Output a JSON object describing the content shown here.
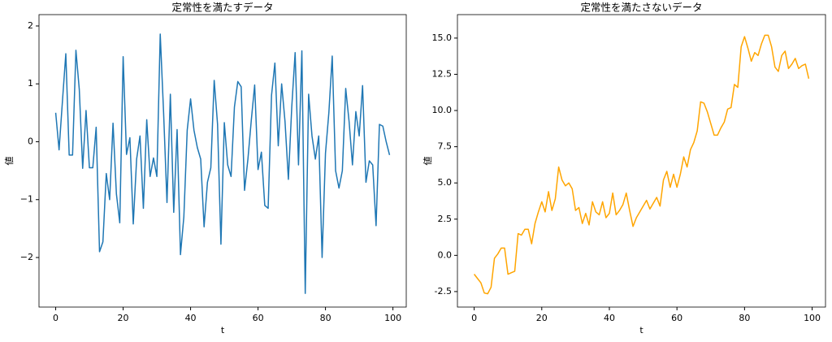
{
  "chart_data": [
    {
      "type": "line",
      "title": "定常性を満たすデータ",
      "xlabel": "t",
      "ylabel": "値",
      "color": "#1f77b4",
      "x": [
        0,
        1,
        2,
        3,
        4,
        5,
        6,
        7,
        8,
        9,
        10,
        11,
        12,
        13,
        14,
        15,
        16,
        17,
        18,
        19,
        20,
        21,
        22,
        23,
        24,
        25,
        26,
        27,
        28,
        29,
        30,
        31,
        32,
        33,
        34,
        35,
        36,
        37,
        38,
        39,
        40,
        41,
        42,
        43,
        44,
        45,
        46,
        47,
        48,
        49,
        50,
        51,
        52,
        53,
        54,
        55,
        56,
        57,
        58,
        59,
        60,
        61,
        62,
        63,
        64,
        65,
        66,
        67,
        68,
        69,
        70,
        71,
        72,
        73,
        74,
        75,
        76,
        77,
        78,
        79,
        80,
        81,
        82,
        83,
        84,
        85,
        86,
        87,
        88,
        89,
        90,
        91,
        92,
        93,
        94,
        95,
        96,
        97,
        98,
        99
      ],
      "values": [
        0.5,
        -0.14,
        0.7,
        1.52,
        -0.23,
        -0.23,
        1.58,
        0.9,
        -0.46,
        0.54,
        -0.45,
        -0.45,
        0.25,
        -1.9,
        -1.73,
        -0.55,
        -1.0,
        0.32,
        -0.9,
        -1.4,
        1.47,
        -0.22,
        0.07,
        -1.42,
        -0.3,
        0.1,
        -1.15,
        0.38,
        -0.6,
        -0.28,
        -0.6,
        1.86,
        0.5,
        -1.05,
        0.82,
        -1.22,
        0.21,
        -1.95,
        -1.3,
        0.2,
        0.74,
        0.2,
        -0.1,
        -0.3,
        -1.47,
        -0.7,
        -0.45,
        1.06,
        0.3,
        -1.77,
        0.33,
        -0.4,
        -0.6,
        0.6,
        1.04,
        0.95,
        -0.84,
        -0.3,
        0.37,
        0.98,
        -0.48,
        -0.18,
        -1.1,
        -1.15,
        0.8,
        1.36,
        -0.07,
        1.0,
        0.35,
        -0.65,
        0.6,
        1.54,
        -0.4,
        1.57,
        -2.62,
        0.82,
        0.1,
        -0.3,
        0.1,
        -2.0,
        -0.2,
        0.5,
        1.48,
        -0.5,
        -0.8,
        -0.5,
        0.92,
        0.35,
        -0.4,
        0.52,
        0.1,
        0.97,
        -0.7,
        -0.33,
        -0.4,
        -1.45,
        0.3,
        0.27,
        0.0,
        -0.23
      ],
      "xlim": [
        -4.95,
        103.95
      ],
      "xticks": [
        0,
        20,
        40,
        60,
        80,
        100
      ],
      "ylim": [
        -2.856,
        2.196
      ],
      "yticks": [
        {
          "value": -2,
          "label": "−2"
        },
        {
          "value": -1,
          "label": "−1"
        },
        0,
        1,
        2
      ]
    },
    {
      "type": "line",
      "title": "定常性を満たさないデータ",
      "xlabel": "t",
      "ylabel": "値",
      "color": "#ffa500",
      "x": [
        0,
        1,
        2,
        3,
        4,
        5,
        6,
        7,
        8,
        9,
        10,
        11,
        12,
        13,
        14,
        15,
        16,
        17,
        18,
        19,
        20,
        21,
        22,
        23,
        24,
        25,
        26,
        27,
        28,
        29,
        30,
        31,
        32,
        33,
        34,
        35,
        36,
        37,
        38,
        39,
        40,
        41,
        42,
        43,
        44,
        45,
        46,
        47,
        48,
        49,
        50,
        51,
        52,
        53,
        54,
        55,
        56,
        57,
        58,
        59,
        60,
        61,
        62,
        63,
        64,
        65,
        66,
        67,
        68,
        69,
        70,
        71,
        72,
        73,
        74,
        75,
        76,
        77,
        78,
        79,
        80,
        81,
        82,
        83,
        84,
        85,
        86,
        87,
        88,
        89,
        90,
        91,
        92,
        93,
        94,
        95,
        96,
        97,
        98,
        99
      ],
      "values": [
        -1.3,
        -1.6,
        -1.9,
        -2.6,
        -2.65,
        -2.2,
        -0.2,
        0.1,
        0.5,
        0.5,
        -1.3,
        -1.2,
        -1.1,
        1.5,
        1.4,
        1.8,
        1.8,
        0.8,
        2.2,
        3.0,
        3.7,
        3.0,
        4.4,
        3.1,
        3.9,
        6.1,
        5.2,
        4.8,
        5.0,
        4.6,
        3.1,
        3.3,
        2.2,
        2.9,
        2.1,
        3.7,
        3.0,
        2.8,
        3.7,
        2.6,
        2.9,
        4.3,
        2.8,
        3.1,
        3.5,
        4.3,
        3.1,
        2.0,
        2.6,
        3.0,
        3.4,
        3.8,
        3.2,
        3.6,
        4.0,
        3.4,
        5.2,
        5.8,
        4.7,
        5.6,
        4.7,
        5.6,
        6.8,
        6.1,
        7.3,
        7.8,
        8.6,
        10.6,
        10.5,
        9.9,
        9.1,
        8.3,
        8.3,
        8.8,
        9.2,
        10.1,
        10.2,
        11.8,
        11.6,
        14.4,
        15.1,
        14.3,
        13.4,
        14.0,
        13.8,
        14.6,
        15.2,
        15.2,
        14.4,
        13.0,
        12.7,
        13.8,
        14.1,
        12.9,
        13.2,
        13.6,
        12.9,
        13.1,
        13.2,
        12.2
      ],
      "xlim": [
        -4.95,
        103.95
      ],
      "xticks": [
        0,
        20,
        40,
        60,
        80,
        100
      ],
      "ylim": [
        -3.57,
        16.62
      ],
      "yticks": [
        {
          "value": -2.5,
          "label": "-2.5"
        },
        {
          "value": 0,
          "label": "0.0"
        },
        {
          "value": 2.5,
          "label": "2.5"
        },
        {
          "value": 5,
          "label": "5.0"
        },
        {
          "value": 7.5,
          "label": "7.5"
        },
        {
          "value": 10,
          "label": "10.0"
        },
        {
          "value": 12.5,
          "label": "12.5"
        },
        {
          "value": 15,
          "label": "15.0"
        }
      ]
    }
  ]
}
